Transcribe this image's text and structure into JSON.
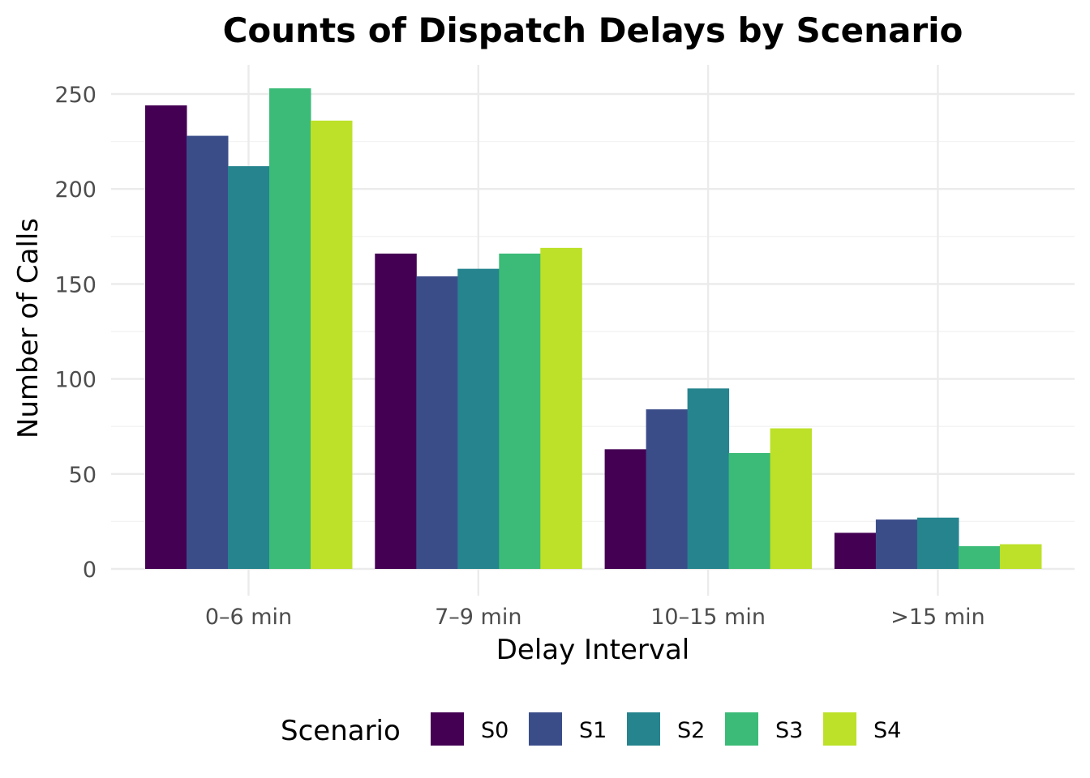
{
  "chart_data": {
    "type": "bar",
    "title": "Counts of Dispatch Delays by Scenario",
    "xlabel": "Delay Interval",
    "ylabel": "Number of Calls",
    "categories": [
      "0–6 min",
      "7–9 min",
      "10–15 min",
      ">15 min"
    ],
    "series": [
      {
        "name": "S0",
        "color": "#440154",
        "values": [
          244,
          166,
          63,
          19
        ]
      },
      {
        "name": "S1",
        "color": "#3b4d89",
        "values": [
          228,
          154,
          84,
          26
        ]
      },
      {
        "name": "S2",
        "color": "#25848e",
        "values": [
          212,
          158,
          95,
          27
        ]
      },
      {
        "name": "S3",
        "color": "#3bbb77",
        "values": [
          253,
          166,
          61,
          12
        ]
      },
      {
        "name": "S4",
        "color": "#bce128",
        "values": [
          236,
          169,
          74,
          13
        ]
      }
    ],
    "ylim": [
      0,
      265
    ],
    "yticks": [
      0,
      50,
      100,
      150,
      200,
      250
    ],
    "grid": true,
    "legend": {
      "title": "Scenario",
      "position": "bottom"
    }
  }
}
